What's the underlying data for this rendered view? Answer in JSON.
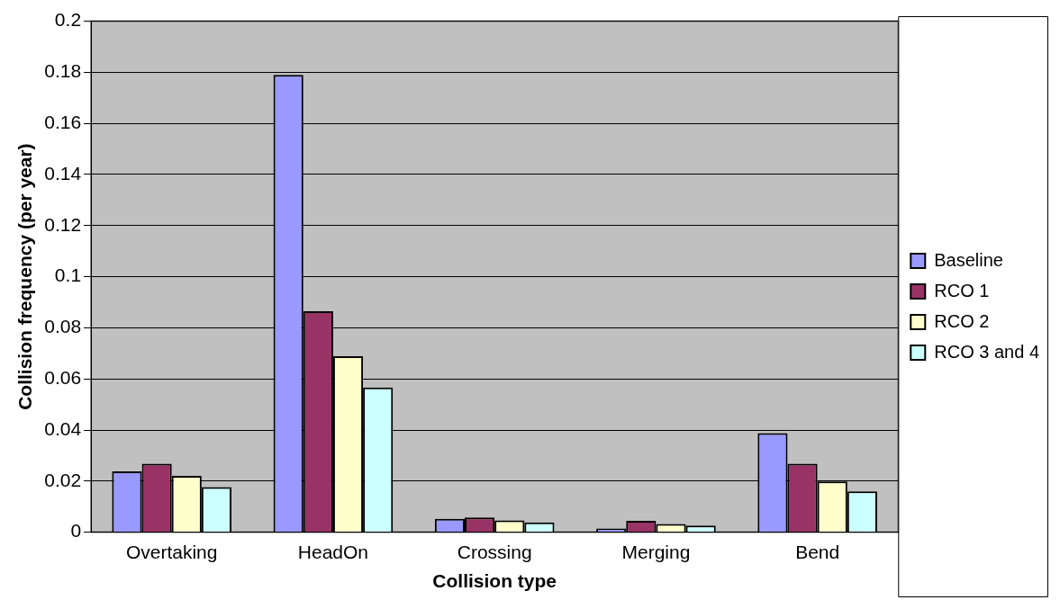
{
  "chart_data": {
    "type": "bar",
    "xlabel": "Collision type",
    "ylabel": "Collision frequency (per year)",
    "categories": [
      "Overtaking",
      "HeadOn",
      "Crossing",
      "Merging",
      "Bend"
    ],
    "series": [
      {
        "name": "Baseline",
        "color": "#9999ff",
        "values": [
          0.0238,
          0.179,
          0.0052,
          0.0014,
          0.0388
        ]
      },
      {
        "name": "RCO 1",
        "color": "#993366",
        "values": [
          0.0268,
          0.0865,
          0.0058,
          0.0044,
          0.0268
        ]
      },
      {
        "name": "RCO 2",
        "color": "#ffffcc",
        "values": [
          0.022,
          0.0689,
          0.0046,
          0.0032,
          0.0198
        ]
      },
      {
        "name": "RCO 3 and 4",
        "color": "#ccffff",
        "values": [
          0.0176,
          0.0566,
          0.0038,
          0.0026,
          0.016
        ]
      }
    ],
    "ylim": [
      0,
      0.2
    ],
    "yticks": [
      0,
      0.02,
      0.04,
      0.06,
      0.08,
      0.1,
      0.12,
      0.14,
      0.16,
      0.18,
      0.2
    ],
    "grid": "y",
    "legend": "right"
  }
}
